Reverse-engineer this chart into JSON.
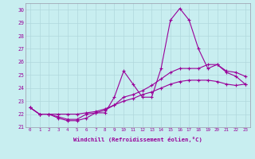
{
  "xlabel": "Windchill (Refroidissement éolien,°C)",
  "background_color": "#c8eef0",
  "line_color": "#990099",
  "grid_color": "#b0d8dc",
  "xlim": [
    -0.5,
    23.5
  ],
  "ylim": [
    21.0,
    30.5
  ],
  "yticks": [
    21,
    22,
    23,
    24,
    25,
    26,
    27,
    28,
    29,
    30
  ],
  "xticks": [
    0,
    1,
    2,
    3,
    4,
    5,
    6,
    7,
    8,
    9,
    10,
    11,
    12,
    13,
    14,
    15,
    16,
    17,
    18,
    19,
    20,
    21,
    22,
    23
  ],
  "series": [
    [
      22.5,
      22.0,
      22.0,
      21.7,
      21.5,
      21.5,
      21.7,
      22.1,
      22.1,
      23.3,
      25.3,
      24.3,
      23.3,
      23.3,
      25.5,
      29.2,
      30.1,
      29.2,
      27.0,
      25.5,
      25.8,
      25.2,
      24.9,
      24.3
    ],
    [
      22.5,
      22.0,
      22.0,
      21.8,
      21.6,
      21.6,
      22.0,
      22.1,
      22.3,
      22.7,
      23.3,
      23.5,
      23.8,
      24.2,
      24.7,
      25.2,
      25.5,
      25.5,
      25.5,
      25.8,
      25.8,
      25.3,
      25.2,
      24.9
    ],
    [
      22.5,
      22.0,
      22.0,
      22.0,
      22.0,
      22.0,
      22.1,
      22.2,
      22.4,
      22.7,
      23.0,
      23.2,
      23.5,
      23.7,
      24.0,
      24.3,
      24.5,
      24.6,
      24.6,
      24.6,
      24.5,
      24.3,
      24.2,
      24.3
    ]
  ]
}
